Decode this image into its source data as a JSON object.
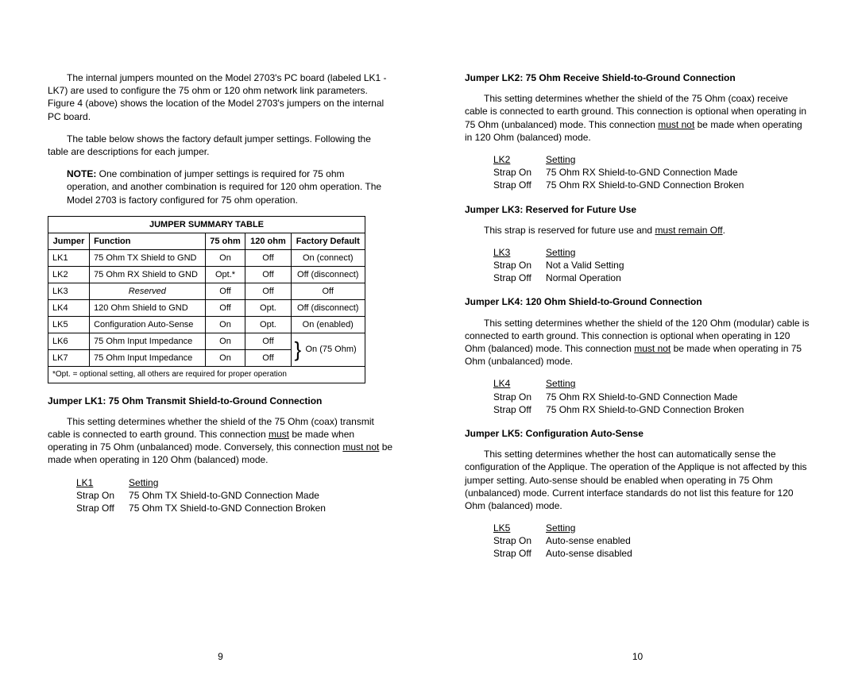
{
  "left": {
    "para1": "The internal jumpers mounted on the Model 2703's PC board (labeled LK1 - LK7) are used to configure the 75 ohm or 120 ohm network link parameters.  Figure 4 (above) shows the location of the Model 2703's jumpers on the internal PC board.",
    "para2": "The table below shows the factory default jumper settings.  Following the table are descriptions for each jumper.",
    "note_label": "NOTE:",
    "note_text": " One combination of jumper settings is required for 75 ohm operation, and another combination is required for 120 ohm operation.  The Model 2703 is factory configured for 75 ohm operation.",
    "table": {
      "title": "JUMPER SUMMARY TABLE",
      "headers": [
        "Jumper",
        "Function",
        "75 ohm",
        "120 ohm",
        "Factory Default"
      ],
      "rows": [
        [
          "LK1",
          "75 Ohm TX Shield to GND",
          "On",
          "Off",
          "On (connect)"
        ],
        [
          "LK2",
          "75 Ohm RX Shield to GND",
          "Opt.*",
          "Off",
          "Off (disconnect)"
        ],
        [
          "LK3",
          "Reserved",
          "Off",
          "Off",
          "Off"
        ],
        [
          "LK4",
          "120 Ohm Shield to GND",
          "Off",
          "Opt.",
          "Off (disconnect)"
        ],
        [
          "LK5",
          "Configuration Auto-Sense",
          "On",
          "Opt.",
          "On (enabled)"
        ],
        [
          "LK6",
          "75 Ohm Input Impedance",
          "On",
          "Off",
          ""
        ],
        [
          "LK7",
          "75 Ohm Input Impedance",
          "On",
          "Off",
          ""
        ]
      ],
      "merged_default": "On (75 Ohm)",
      "footnote": "*Opt. = optional setting, all others are required for proper operation"
    },
    "lk1": {
      "heading": "Jumper LK1:  75 Ohm Transmit Shield-to-Ground Connection",
      "para_a": "This setting determines whether the shield of the 75 Ohm (coax) transmit cable is connected to earth ground.  This connection ",
      "must": "must",
      "para_b": " be made when operating in 75 Ohm (unbalanced) mode.  Conversely, this connection ",
      "mustnot": "must not",
      "para_c": " be made when operating in 120 Ohm (balanced) mode.",
      "table": {
        "h1": "LK1",
        "h2": "Setting",
        "r1a": "Strap On",
        "r1b": "75 Ohm TX Shield-to-GND Connection Made",
        "r2a": "Strap Off",
        "r2b": "75 Ohm TX Shield-to-GND Connection Broken"
      }
    },
    "page_num": "9"
  },
  "right": {
    "lk2": {
      "heading": "Jumper LK2:  75 Ohm Receive Shield-to-Ground Connection",
      "para_a": "This setting determines whether the shield of the 75 Ohm (coax) receive cable is connected to earth ground.  This connection is optional when operating in 75 Ohm (unbalanced) mode.  This connection ",
      "must": "must not",
      "para_b": " be made when operating in 120 Ohm (balanced) mode.",
      "table": {
        "h1": "LK2",
        "h2": "Setting",
        "r1a": "Strap On",
        "r1b": "75 Ohm RX Shield-to-GND Connection Made",
        "r2a": "Strap Off",
        "r2b": "75 Ohm RX Shield-to-GND Connection Broken"
      }
    },
    "lk3": {
      "heading": "Jumper LK3:  Reserved for Future Use",
      "para_a": "This strap is reserved for future use and ",
      "must": "must remain Off",
      "para_b": ".",
      "table": {
        "h1": "LK3",
        "h2": "Setting",
        "r1a": "Strap On",
        "r1b": "Not a Valid Setting",
        "r2a": "Strap Off",
        "r2b": "Normal Operation"
      }
    },
    "lk4": {
      "heading": "Jumper LK4:  120 Ohm Shield-to-Ground Connection",
      "para_a": "This setting determines whether the shield of the 120 Ohm (modular) cable is connected to earth ground.  This connection is optional when operating in 120 Ohm (balanced) mode.  This connection ",
      "must": "must not",
      "para_b": " be made when operating in 75 Ohm (unbalanced) mode.",
      "table": {
        "h1": "LK4",
        "h2": "Setting",
        "r1a": "Strap On",
        "r1b": "75 Ohm RX Shield-to-GND Connection Made",
        "r2a": "Strap Off",
        "r2b": "75 Ohm RX Shield-to-GND Connection Broken"
      }
    },
    "lk5": {
      "heading": "Jumper LK5:  Configuration Auto-Sense",
      "para": "This setting determines whether the host can automatically sense the configuration of the Applique.  The operation of the Applique is not affected by this jumper setting.  Auto-sense should be enabled when operating in 75 Ohm (unbalanced) mode.  Current interface standards do not list this feature for 120 Ohm (balanced) mode.",
      "table": {
        "h1": "LK5",
        "h2": "Setting",
        "r1a": "Strap On",
        "r1b": "Auto-sense enabled",
        "r2a": "Strap Off",
        "r2b": "Auto-sense disabled"
      }
    },
    "page_num": "10"
  }
}
